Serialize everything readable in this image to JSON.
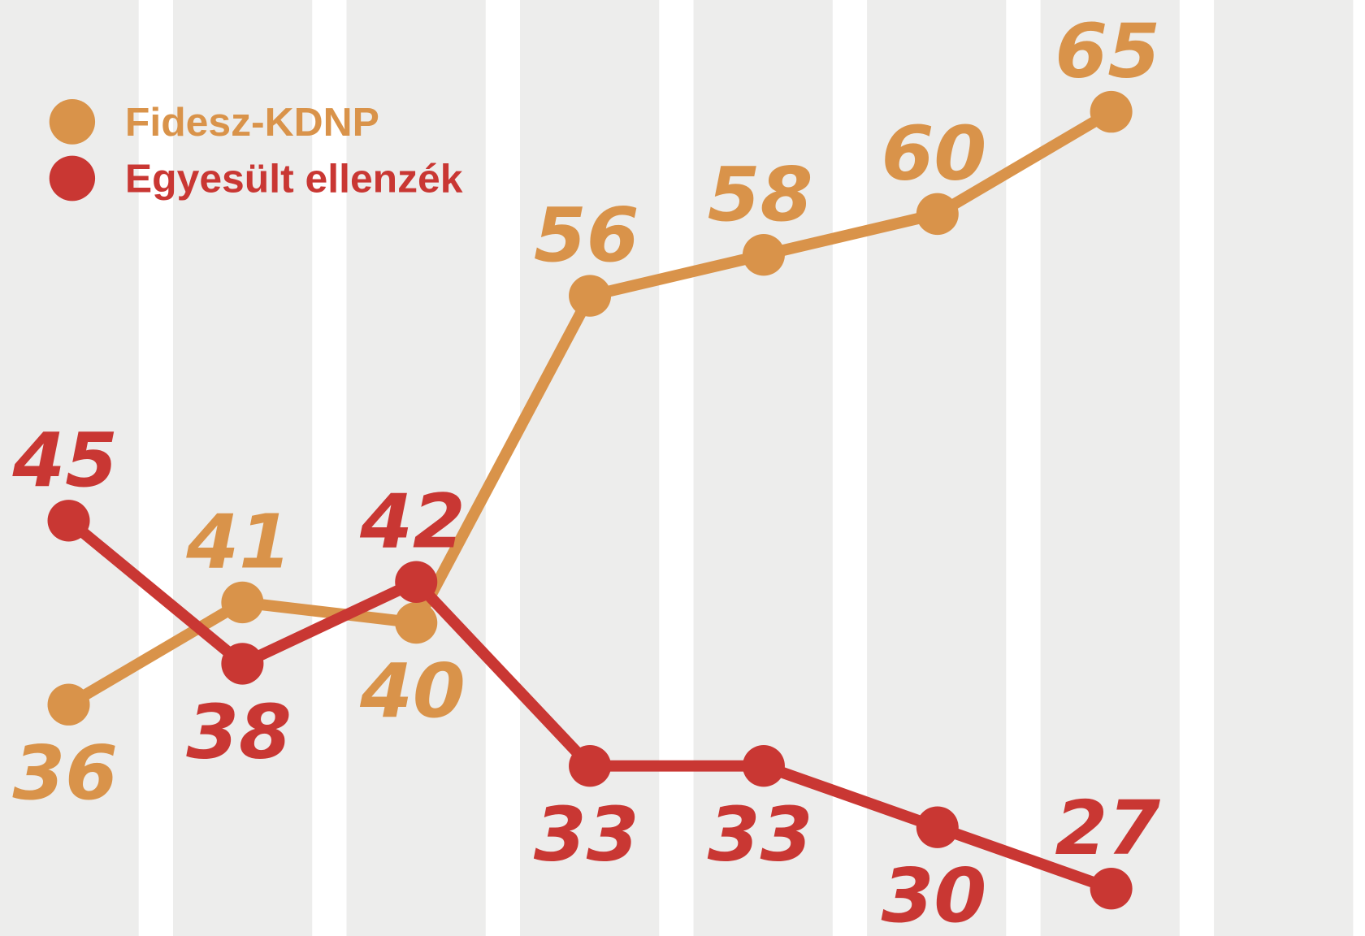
{
  "chart_data": {
    "type": "line",
    "x": [
      1,
      2,
      3,
      4,
      5,
      6,
      7
    ],
    "ylim": [
      20,
      70
    ],
    "grid": "alternating vertical column bands",
    "legend": "top-left",
    "series": [
      {
        "name": "Fidesz-KDNP",
        "color": "#D9934A",
        "values": [
          36,
          41,
          40,
          56,
          58,
          60,
          65
        ],
        "label_side": [
          "below",
          "above",
          "below",
          "above",
          "above",
          "above",
          "above"
        ]
      },
      {
        "name": "Egyesült ellenzék",
        "color": "#C93733",
        "values": [
          45,
          38,
          42,
          33,
          33,
          30,
          27
        ],
        "label_side": [
          "above",
          "below",
          "above",
          "below",
          "below",
          "below",
          "above"
        ]
      }
    ]
  },
  "legend": {
    "items": [
      "Fidesz-KDNP",
      "Egyesült ellenzék"
    ]
  },
  "colors": {
    "band": "#EDEDEC",
    "gap": "#FFFFFF"
  }
}
